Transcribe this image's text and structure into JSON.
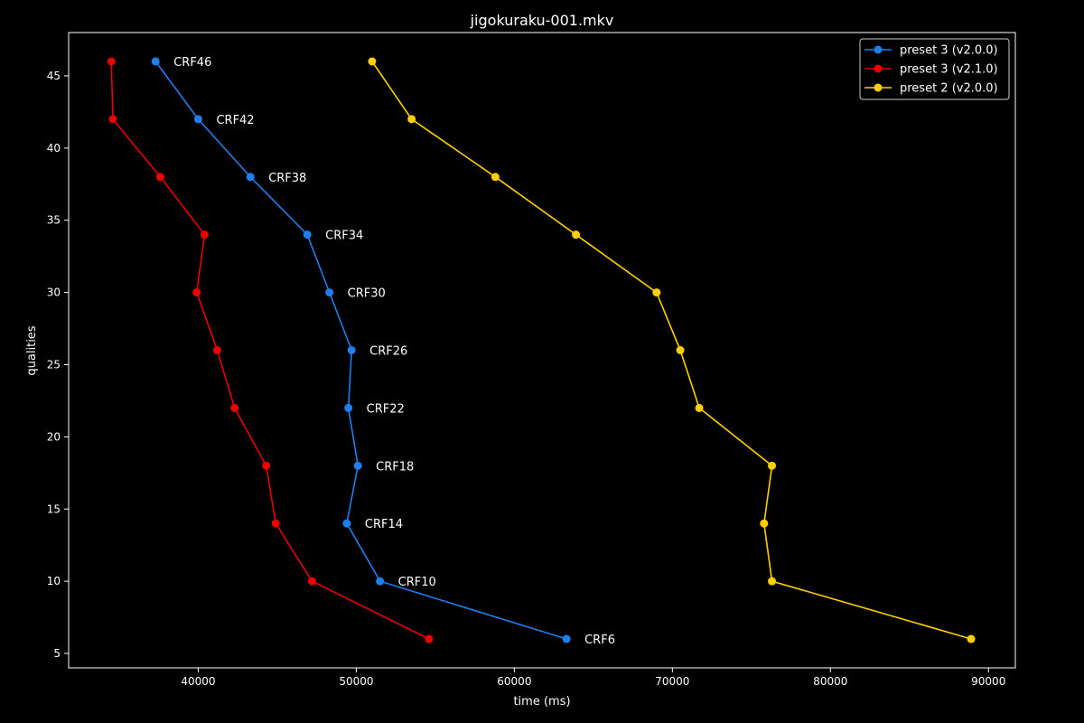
{
  "chart_data": {
    "type": "line",
    "title": "jigokuraku-001.mkv",
    "xlabel": "time (ms)",
    "ylabel": "qualities",
    "xlim": [
      31800,
      91700
    ],
    "ylim": [
      4,
      48
    ],
    "xticks": [
      40000,
      50000,
      60000,
      70000,
      80000,
      90000
    ],
    "yticks": [
      5,
      10,
      15,
      20,
      25,
      30,
      35,
      40,
      45
    ],
    "grid": false,
    "legend_position": "top-right",
    "series": [
      {
        "name": "preset 3 (v2.0.0)",
        "color": "#1f7fef",
        "x": [
          37300,
          40000,
          43300,
          46900,
          48300,
          49700,
          49500,
          50100,
          49400,
          51500,
          63300
        ],
        "y": [
          46,
          42,
          38,
          34,
          30,
          26,
          22,
          18,
          14,
          10,
          6
        ]
      },
      {
        "name": "preset 3 (v2.1.0)",
        "color": "#ee0000",
        "x": [
          34500,
          34600,
          37600,
          40400,
          39900,
          41200,
          42300,
          44300,
          44900,
          47200,
          54600
        ],
        "y": [
          46,
          42,
          38,
          34,
          30,
          26,
          22,
          18,
          14,
          10,
          6
        ]
      },
      {
        "name": "preset 2 (v2.0.0)",
        "color": "#ffd000",
        "x": [
          51000,
          53500,
          58800,
          63900,
          69000,
          70500,
          71700,
          76300,
          75800,
          76300,
          88900
        ],
        "y": [
          46,
          42,
          38,
          34,
          30,
          26,
          22,
          18,
          14,
          10,
          6
        ]
      }
    ],
    "annotations": [
      {
        "text": "CRF46",
        "x": 37300,
        "y": 46
      },
      {
        "text": "CRF42",
        "x": 40000,
        "y": 42
      },
      {
        "text": "CRF38",
        "x": 43300,
        "y": 38
      },
      {
        "text": "CRF34",
        "x": 46900,
        "y": 34
      },
      {
        "text": "CRF30",
        "x": 48300,
        "y": 30
      },
      {
        "text": "CRF26",
        "x": 49700,
        "y": 26
      },
      {
        "text": "CRF22",
        "x": 49500,
        "y": 22
      },
      {
        "text": "CRF18",
        "x": 50100,
        "y": 18
      },
      {
        "text": "CRF14",
        "x": 49400,
        "y": 14
      },
      {
        "text": "CRF10",
        "x": 51500,
        "y": 10
      },
      {
        "text": "CRF6",
        "x": 63300,
        "y": 6
      }
    ]
  }
}
